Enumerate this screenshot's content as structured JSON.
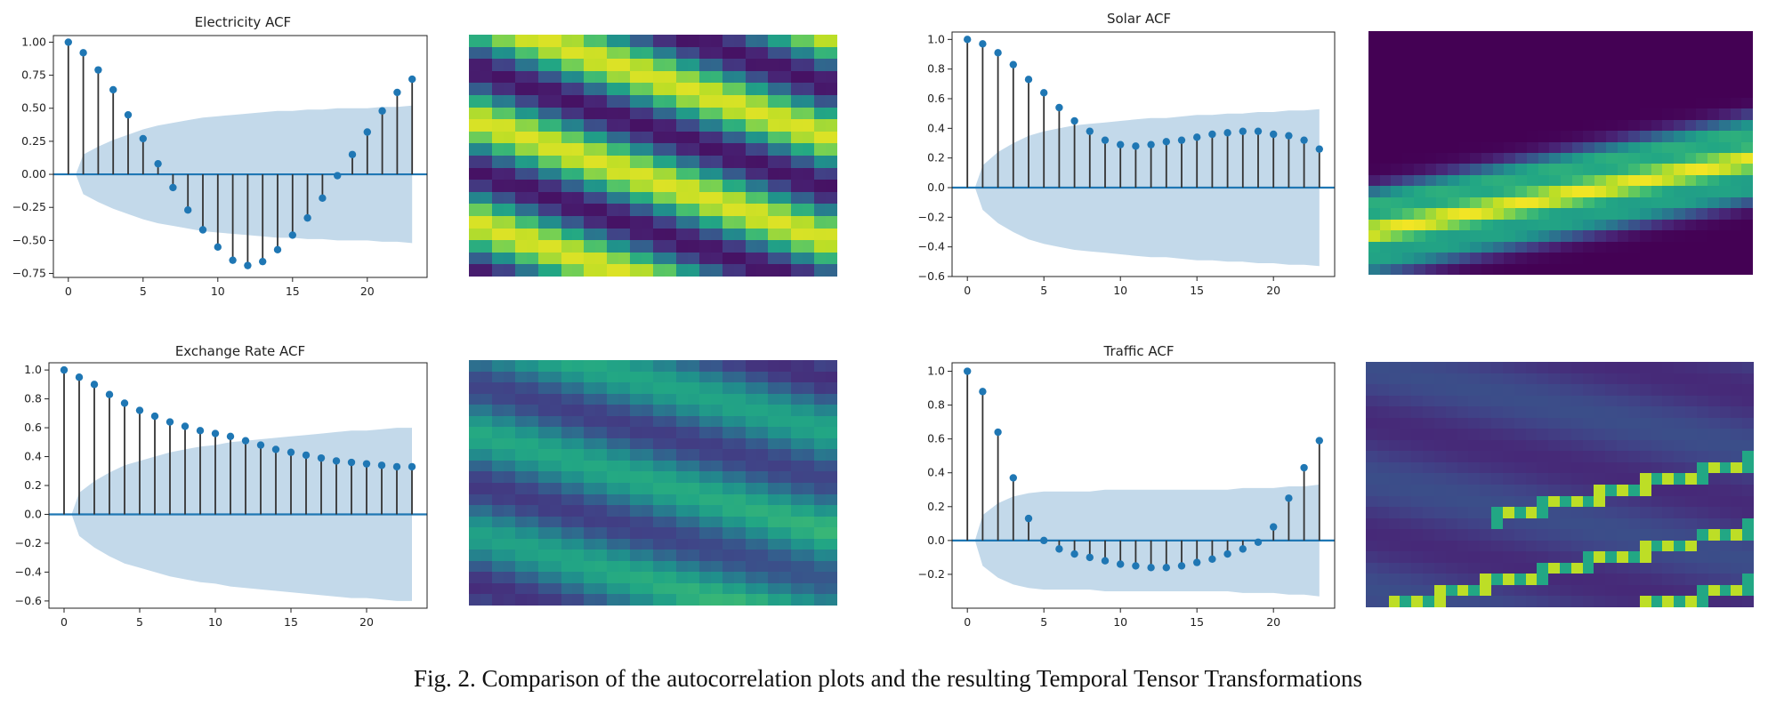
{
  "figure": {
    "caption": "Fig. 2.  Comparison of the autocorrelation plots and the resulting Temporal Tensor Transformations"
  },
  "chart_data": [
    {
      "id": "electricity",
      "type": "stem",
      "title": "Electricity ACF",
      "x": [
        0,
        1,
        2,
        3,
        4,
        5,
        6,
        7,
        8,
        9,
        10,
        11,
        12,
        13,
        14,
        15,
        16,
        17,
        18,
        19,
        20,
        21,
        22,
        23
      ],
      "values": [
        1.0,
        0.92,
        0.79,
        0.64,
        0.45,
        0.27,
        0.08,
        -0.1,
        -0.27,
        -0.42,
        -0.55,
        -0.65,
        -0.69,
        -0.66,
        -0.57,
        -0.46,
        -0.33,
        -0.18,
        -0.01,
        0.15,
        0.32,
        0.48,
        0.62,
        0.72
      ],
      "confidence_upper": [
        0.0,
        0.15,
        0.21,
        0.26,
        0.3,
        0.34,
        0.37,
        0.39,
        0.41,
        0.43,
        0.44,
        0.45,
        0.46,
        0.47,
        0.48,
        0.48,
        0.49,
        0.49,
        0.5,
        0.5,
        0.5,
        0.51,
        0.51,
        0.52
      ],
      "xlim": [
        -1,
        24
      ],
      "ylim": [
        -0.78,
        1.05
      ],
      "yticks": [
        1.0,
        0.75,
        0.5,
        0.25,
        0.0,
        -0.25,
        -0.5,
        -0.75
      ],
      "ytick_labels": [
        "1.00",
        "0.75",
        "0.50",
        "0.25",
        "0.00",
        "−0.25",
        "−0.50",
        "−0.75"
      ],
      "xticks": [
        0,
        5,
        10,
        15,
        20
      ],
      "xtick_labels": [
        "0",
        "5",
        "10",
        "15",
        "20"
      ],
      "colors": {
        "stem": "#333333",
        "marker": "#1f77b4",
        "baseline": "#1f77b4",
        "band": "#c3d9ea"
      },
      "heatmap": {
        "pattern": "stripes",
        "cols": 32,
        "rows": 20,
        "slope": 0.32,
        "period": 8.5,
        "width": 0.32,
        "low": 0.05,
        "high": 0.95,
        "phase": 0.0
      }
    },
    {
      "id": "solar",
      "type": "stem",
      "title": "Solar ACF",
      "x": [
        0,
        1,
        2,
        3,
        4,
        5,
        6,
        7,
        8,
        9,
        10,
        11,
        12,
        13,
        14,
        15,
        16,
        17,
        18,
        19,
        20,
        21,
        22,
        23
      ],
      "values": [
        1.0,
        0.97,
        0.91,
        0.83,
        0.73,
        0.64,
        0.54,
        0.45,
        0.38,
        0.32,
        0.29,
        0.28,
        0.29,
        0.31,
        0.32,
        0.34,
        0.36,
        0.37,
        0.38,
        0.38,
        0.36,
        0.35,
        0.32,
        0.26
      ],
      "confidence_upper": [
        0.0,
        0.15,
        0.24,
        0.3,
        0.35,
        0.38,
        0.4,
        0.42,
        0.43,
        0.44,
        0.45,
        0.46,
        0.47,
        0.47,
        0.48,
        0.49,
        0.49,
        0.5,
        0.5,
        0.51,
        0.51,
        0.52,
        0.52,
        0.53
      ],
      "xlim": [
        -1,
        24
      ],
      "ylim": [
        -0.6,
        1.05
      ],
      "yticks": [
        1.0,
        0.8,
        0.6,
        0.4,
        0.2,
        0.0,
        -0.2,
        -0.4,
        -0.6
      ],
      "ytick_labels": [
        "1.0",
        "0.8",
        "0.6",
        "0.4",
        "0.2",
        "0.0",
        "−0.2",
        "−0.4",
        "−0.6"
      ],
      "xticks": [
        0,
        5,
        10,
        15,
        20
      ],
      "xtick_labels": [
        "0",
        "5",
        "10",
        "15",
        "20"
      ],
      "colors": {
        "stem": "#333333",
        "marker": "#1f77b4",
        "baseline": "#1f77b4",
        "band": "#c3d9ea"
      },
      "heatmap": {
        "pattern": "bands",
        "cols": 34,
        "rows": 22,
        "slope": -0.3,
        "centers": [
          0.62,
          0.5,
          0.38
        ],
        "amps": [
          0.55,
          0.95,
          0.6
        ],
        "width": 0.045,
        "phase": 0.0
      }
    },
    {
      "id": "exchange",
      "type": "stem",
      "title": "Exchange Rate ACF",
      "x": [
        0,
        1,
        2,
        3,
        4,
        5,
        6,
        7,
        8,
        9,
        10,
        11,
        12,
        13,
        14,
        15,
        16,
        17,
        18,
        19,
        20,
        21,
        22,
        23
      ],
      "values": [
        1.0,
        0.95,
        0.9,
        0.83,
        0.77,
        0.72,
        0.68,
        0.64,
        0.61,
        0.58,
        0.56,
        0.54,
        0.51,
        0.48,
        0.45,
        0.43,
        0.41,
        0.39,
        0.37,
        0.36,
        0.35,
        0.34,
        0.33,
        0.33
      ],
      "confidence_upper": [
        0.0,
        0.15,
        0.23,
        0.29,
        0.34,
        0.37,
        0.4,
        0.43,
        0.45,
        0.47,
        0.48,
        0.5,
        0.51,
        0.52,
        0.53,
        0.54,
        0.55,
        0.56,
        0.57,
        0.58,
        0.58,
        0.59,
        0.6,
        0.6
      ],
      "xlim": [
        -1,
        24
      ],
      "ylim": [
        -0.65,
        1.05
      ],
      "yticks": [
        1.0,
        0.8,
        0.6,
        0.4,
        0.2,
        0.0,
        -0.2,
        -0.4,
        -0.6
      ],
      "ytick_labels": [
        "1.0",
        "0.8",
        "0.6",
        "0.4",
        "0.2",
        "0.0",
        "−0.2",
        "−0.4",
        "−0.6"
      ],
      "xticks": [
        0,
        5,
        10,
        15,
        20
      ],
      "xtick_labels": [
        "0",
        "5",
        "10",
        "15",
        "20"
      ],
      "colors": {
        "stem": "#333333",
        "marker": "#1f77b4",
        "baseline": "#1f77b4",
        "band": "#c3d9ea"
      },
      "heatmap": {
        "pattern": "smooth",
        "cols": 32,
        "rows": 22,
        "slope": 0.28,
        "period": 9.0,
        "width": 0.45,
        "low": 0.12,
        "high": 0.55,
        "phase": 0.3
      }
    },
    {
      "id": "traffic",
      "type": "stem",
      "title": "Traffic ACF",
      "x": [
        0,
        1,
        2,
        3,
        4,
        5,
        6,
        7,
        8,
        9,
        10,
        11,
        12,
        13,
        14,
        15,
        16,
        17,
        18,
        19,
        20,
        21,
        22,
        23
      ],
      "values": [
        1.0,
        0.88,
        0.64,
        0.37,
        0.13,
        0.0,
        -0.05,
        -0.08,
        -0.1,
        -0.12,
        -0.14,
        -0.15,
        -0.16,
        -0.16,
        -0.15,
        -0.13,
        -0.11,
        -0.08,
        -0.05,
        -0.01,
        0.08,
        0.25,
        0.43,
        0.59
      ],
      "confidence_upper": [
        0.0,
        0.15,
        0.22,
        0.26,
        0.28,
        0.29,
        0.29,
        0.29,
        0.29,
        0.3,
        0.3,
        0.3,
        0.3,
        0.3,
        0.3,
        0.3,
        0.3,
        0.3,
        0.31,
        0.31,
        0.31,
        0.32,
        0.32,
        0.33
      ],
      "xlim": [
        -1,
        24
      ],
      "ylim": [
        -0.4,
        1.05
      ],
      "yticks": [
        1.0,
        0.8,
        0.6,
        0.4,
        0.2,
        0.0,
        -0.2
      ],
      "ytick_labels": [
        "1.0",
        "0.8",
        "0.6",
        "0.4",
        "0.2",
        "0.0",
        "−0.2"
      ],
      "xticks": [
        0,
        5,
        10,
        15,
        20
      ],
      "xtick_labels": [
        "0",
        "5",
        "10",
        "15",
        "20"
      ],
      "colors": {
        "stem": "#333333",
        "marker": "#1f77b4",
        "baseline": "#1f77b4",
        "band": "#c3d9ea"
      },
      "heatmap": {
        "pattern": "traffic",
        "cols": 34,
        "rows": 22,
        "slope": 0.22,
        "period": 10.0,
        "width": 0.1,
        "low": 0.08,
        "high": 0.35,
        "phase": 0.0
      }
    }
  ]
}
